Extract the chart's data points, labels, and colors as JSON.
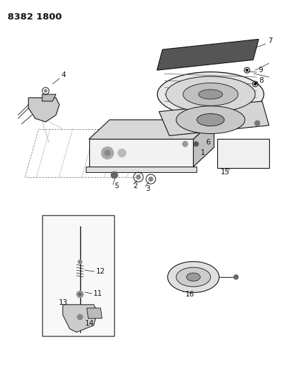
{
  "title": "8382 1800",
  "bg_color": "#ffffff",
  "figsize": [
    4.1,
    5.33
  ],
  "dpi": 100,
  "line_color": "#111111",
  "label_fontsize": 7.5,
  "title_fontsize": 9.5
}
